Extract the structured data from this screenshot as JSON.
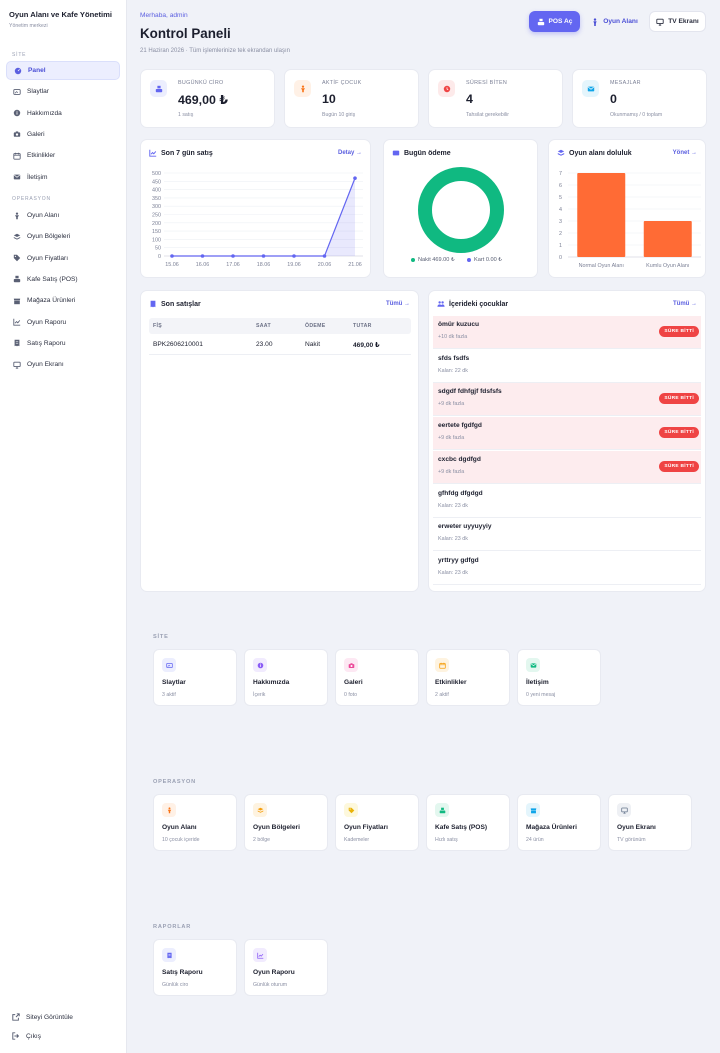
{
  "brand": {
    "title": "Oyun Alanı ve Kafe Yönetimi",
    "subtitle": "Yönetim merkezi"
  },
  "sidebar": {
    "site_label": "SİTE",
    "site_items": [
      {
        "label": "Panel",
        "icon": "dashboard-icon"
      },
      {
        "label": "Slaytlar",
        "icon": "slides-icon"
      },
      {
        "label": "Hakkımızda",
        "icon": "info-icon"
      },
      {
        "label": "Galeri",
        "icon": "camera-icon"
      },
      {
        "label": "Etkinlikler",
        "icon": "calendar-icon"
      },
      {
        "label": "İletişim",
        "icon": "mail-icon"
      }
    ],
    "ops_label": "OPERASYON",
    "ops_items": [
      {
        "label": "Oyun Alanı",
        "icon": "child-icon"
      },
      {
        "label": "Oyun Bölgeleri",
        "icon": "layers-icon"
      },
      {
        "label": "Oyun Fiyatları",
        "icon": "tag-icon"
      },
      {
        "label": "Kafe Satış (POS)",
        "icon": "cash-register-icon"
      },
      {
        "label": "Mağaza Ürünleri",
        "icon": "store-icon"
      },
      {
        "label": "Oyun Raporu",
        "icon": "line-chart-icon"
      },
      {
        "label": "Satış Raporu",
        "icon": "receipt-icon"
      },
      {
        "label": "Oyun Ekranı",
        "icon": "monitor-icon"
      }
    ],
    "view_site": "Siteyi Görüntüle",
    "logout": "Çıkış"
  },
  "header": {
    "greeting": "Merhaba, admin",
    "title": "Kontrol Paneli",
    "subtitle": "21 Haziran 2026 · Tüm işlemlerinize tek ekrandan ulaşın",
    "btn_pos": "POS Aç",
    "btn_oyun": "Oyun Alanı",
    "btn_tv": "TV Ekranı"
  },
  "stats": [
    {
      "label": "BUGÜNKÜ CİRO",
      "value": "469,00 ₺",
      "sub": "1 satış",
      "color": "#6366f1",
      "bg": "#eceefe"
    },
    {
      "label": "AKTİF ÇOCUK",
      "value": "10",
      "sub": "Bugün 10 giriş",
      "color": "#f97316",
      "bg": "#fff1e6"
    },
    {
      "label": "SÜRESİ BİTEN",
      "value": "4",
      "sub": "Tahsilat gerekebilir",
      "color": "#ef4444",
      "bg": "#fdeaea"
    },
    {
      "label": "MESAJLAR",
      "value": "0",
      "sub": "Okunmamış / 0 toplam",
      "color": "#0ea5e9",
      "bg": "#e4f5fc"
    }
  ],
  "sales_chart": {
    "title": "Son 7 gün satış",
    "link": "Detay →",
    "chart_data": {
      "type": "line",
      "categories": [
        "15.06",
        "16.06",
        "17.06",
        "18.06",
        "19.06",
        "20.06",
        "21.06"
      ],
      "values": [
        0,
        0,
        0,
        0,
        0,
        0,
        469
      ],
      "ylim": [
        0,
        500
      ],
      "yticks": [
        "0",
        "50",
        "100",
        "150",
        "200",
        "250",
        "300",
        "350",
        "400",
        "450",
        "500"
      ],
      "color": "#6366f1"
    }
  },
  "payment_chart": {
    "title": "Bugün ödeme",
    "chart_data": {
      "type": "pie",
      "labels": [
        "Nakit",
        "Kart"
      ],
      "values": [
        469,
        0
      ],
      "colors": [
        "#10b981",
        "#6366f1"
      ]
    },
    "legend_cash": "Nakit 469.00 ₺",
    "legend_card": "Kart 0.00 ₺"
  },
  "occupancy_chart": {
    "title": "Oyun alanı doluluk",
    "link": "Yönet →",
    "chart_data": {
      "type": "bar",
      "categories": [
        "Normal Oyun Alanı",
        "Kumlu Oyun Alanı"
      ],
      "values": [
        7,
        3
      ],
      "ylim": [
        0,
        7
      ],
      "yticks": [
        "0",
        "1",
        "2",
        "3",
        "4",
        "5",
        "6",
        "7"
      ],
      "color": "#ff6b35"
    }
  },
  "recent_sales": {
    "title": "Son satışlar",
    "link": "Tümü →",
    "columns": [
      "FİŞ",
      "SAAT",
      "ÖDEME",
      "TUTAR"
    ],
    "rows": [
      {
        "fis": "BPK2606210001",
        "saat": "23.00",
        "odeme": "Nakit",
        "tutar": "469,00 ₺"
      }
    ]
  },
  "children": {
    "title": "İçerideki çocuklar",
    "link": "Tümü →",
    "badge": "SÜRE BİTTİ",
    "items": [
      {
        "name": "ömür kuzucu",
        "sub": "+10 dk fazla",
        "over": true
      },
      {
        "name": "sfds fsdfs",
        "sub": "Kalan: 22 dk",
        "over": false
      },
      {
        "name": "sdgdf fdhfgjf fdsfsfs",
        "sub": "+9 dk fazla",
        "over": true
      },
      {
        "name": "eertete fgdfgd",
        "sub": "+9 dk fazla",
        "over": true
      },
      {
        "name": "cxcbc dgdfgd",
        "sub": "+9 dk fazla",
        "over": true
      },
      {
        "name": "gfhfdg dfgdgd",
        "sub": "Kalan: 23 dk",
        "over": false
      },
      {
        "name": "erweter uyyuyyiy",
        "sub": "Kalan: 23 dk",
        "over": false
      },
      {
        "name": "yrttryy gdfgd",
        "sub": "Kalan: 23 dk",
        "over": false
      }
    ]
  },
  "groups": {
    "site_label": "SİTE",
    "site_tiles": [
      {
        "title": "Slaytlar",
        "sub": "3 aktif",
        "icon": "slides-icon",
        "color": "#6366f1",
        "bg": "#eceefe"
      },
      {
        "title": "Hakkımızda",
        "sub": "İçerik",
        "icon": "info-icon",
        "color": "#8b5cf6",
        "bg": "#f1ebfe"
      },
      {
        "title": "Galeri",
        "sub": "0 foto",
        "icon": "camera-icon",
        "color": "#ec4899",
        "bg": "#fde8f3"
      },
      {
        "title": "Etkinlikler",
        "sub": "2 aktif",
        "icon": "calendar-icon",
        "color": "#f59e0b",
        "bg": "#fef3e0"
      },
      {
        "title": "İletişim",
        "sub": "0 yeni mesaj",
        "icon": "mail-icon",
        "color": "#10b981",
        "bg": "#e3f7ef"
      }
    ],
    "ops_label": "OPERASYON",
    "ops_tiles": [
      {
        "title": "Oyun Alanı",
        "sub": "10 çocuk içeride",
        "icon": "child-icon",
        "color": "#f97316",
        "bg": "#fff1e6"
      },
      {
        "title": "Oyun Bölgeleri",
        "sub": "2 bölge",
        "icon": "layers-icon",
        "color": "#f59e0b",
        "bg": "#fef3e0"
      },
      {
        "title": "Oyun Fiyatları",
        "sub": "Kademeler",
        "icon": "tag-icon",
        "color": "#eab308",
        "bg": "#fdf8dc"
      },
      {
        "title": "Kafe Satış (POS)",
        "sub": "Hızlı satış",
        "icon": "cash-register-icon",
        "color": "#10b981",
        "bg": "#e3f7ef"
      },
      {
        "title": "Mağaza Ürünleri",
        "sub": "24 ürün",
        "icon": "store-icon",
        "color": "#0ea5e9",
        "bg": "#e4f5fc"
      },
      {
        "title": "Oyun Ekranı",
        "sub": "TV görünüm",
        "icon": "monitor-icon",
        "color": "#64748b",
        "bg": "#eef0f4"
      }
    ],
    "reports_label": "RAPORLAR",
    "report_tiles": [
      {
        "title": "Satış Raporu",
        "sub": "Günlük ciro",
        "icon": "receipt-icon",
        "color": "#6366f1",
        "bg": "#eceefe"
      },
      {
        "title": "Oyun Raporu",
        "sub": "Günlük oturum",
        "icon": "line-chart-icon",
        "color": "#8b5cf6",
        "bg": "#f1ebfe"
      }
    ]
  }
}
